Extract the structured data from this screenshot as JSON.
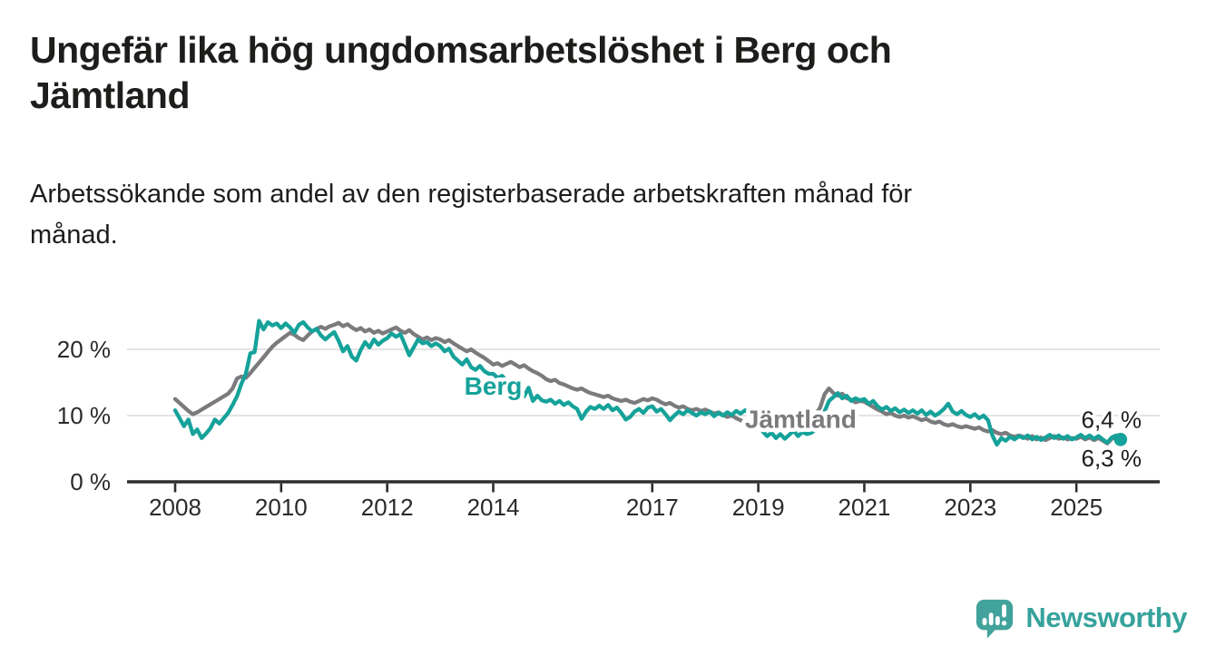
{
  "header": {
    "title_lines": [
      "Ungefär lika hög ungdomsarbetslöshet i Berg och",
      "Jämtland"
    ],
    "subtitle_lines": [
      "Arbetssökande som andel av den registerbaserade arbetskraften månad för",
      "månad."
    ]
  },
  "footer": {
    "brand": "Newsworthy"
  },
  "colors": {
    "berg": "#15a29a",
    "jamtland": "#7b7b7e",
    "axis": "#2d2d2d",
    "grid": "#dcdcdc",
    "tick_text": "#2a2a2a",
    "end_label_text": "#1d1d1b",
    "logo_bubble": "#41a39b",
    "logo_text": "#36a29c"
  },
  "chart_data": {
    "type": "line",
    "unit": "%",
    "start": {
      "year": 2008,
      "month": 1
    },
    "frequency": "monthly",
    "x_ticks": [
      2008,
      2010,
      2012,
      2014,
      2017,
      2019,
      2021,
      2023,
      2025
    ],
    "y_ticks": [
      0,
      10,
      20
    ],
    "y_tick_labels": [
      "0 %",
      "10 %",
      "20 %"
    ],
    "ylim": [
      0,
      27
    ],
    "grid": true,
    "legend_position": "inline-labels",
    "series": [
      {
        "name": "Jämtland",
        "color": "#7b7b7e",
        "label_x": 2019.8,
        "label_y": 9.55,
        "end_label": "6,3 %",
        "end_label_side": "below",
        "end_dot": false,
        "values": [
          [
            12.5,
            11.9,
            11.3,
            10.7,
            10.2,
            10.5,
            10.9,
            11.3,
            11.7,
            12.1,
            12.5,
            12.9
          ],
          [
            13.3,
            14.1,
            15.6,
            15.9,
            15.7,
            16.4,
            17.2,
            18.0,
            18.8,
            19.6,
            20.4,
            21.0
          ],
          [
            21.5,
            22.0,
            22.5,
            22.2,
            21.7,
            21.4,
            22.1,
            22.7,
            23.1,
            23.4,
            23.1,
            23.5
          ],
          [
            23.7,
            24.0,
            23.5,
            23.8,
            23.3,
            22.9,
            23.2,
            22.7,
            23.0,
            22.5,
            22.8,
            22.4
          ],
          [
            22.7,
            23.0,
            23.3,
            22.8,
            22.5,
            22.9,
            22.3,
            21.9,
            21.5,
            21.8,
            21.4,
            21.7
          ],
          [
            21.5,
            21.1,
            21.4,
            20.9,
            20.5,
            20.1,
            19.7,
            20.0,
            19.5,
            19.1,
            18.7,
            18.2
          ],
          [
            17.7,
            17.9,
            17.5,
            17.8,
            18.1,
            17.7,
            17.3,
            17.6,
            17.1,
            16.7,
            16.4,
            16.0
          ],
          [
            15.5,
            15.2,
            15.4,
            14.9,
            14.7,
            14.4,
            14.1,
            13.9,
            14.1,
            13.7,
            13.4,
            13.2
          ],
          [
            13.0,
            12.8,
            13.0,
            12.6,
            12.4,
            12.2,
            12.4,
            12.1,
            11.9,
            12.2,
            12.5,
            12.3
          ],
          [
            12.6,
            12.4,
            12.0,
            11.7,
            11.9,
            11.5,
            11.2,
            11.4,
            11.0,
            10.8,
            11.0,
            10.7
          ],
          [
            10.9,
            10.6,
            10.3,
            10.5,
            10.1,
            9.8,
            10.0,
            9.6,
            9.3,
            8.9,
            9.2,
            9.5
          ],
          [
            9.7,
            9.5,
            9.8,
            9.4,
            9.6,
            9.3,
            9.5,
            9.2,
            9.4,
            9.1,
            9.3,
            9.5
          ],
          [
            9.8,
            10.2,
            11.2,
            13.2,
            14.1,
            13.4,
            13.0,
            13.3,
            12.6,
            12.4,
            12.0,
            12.2
          ],
          [
            12.1,
            11.7,
            11.3,
            10.9,
            10.6,
            10.2,
            10.4,
            10.0,
            9.8,
            10.0,
            9.7,
            9.9
          ],
          [
            9.6,
            9.3,
            9.5,
            9.1,
            8.9,
            9.1,
            8.7,
            8.5,
            8.7,
            8.4,
            8.2,
            8.4
          ],
          [
            8.2,
            8.0,
            8.2,
            7.8,
            7.6,
            7.8,
            7.4,
            7.2,
            7.4,
            7.0,
            6.8,
            7.0
          ],
          [
            6.8,
            6.5,
            6.9,
            6.4,
            6.7,
            6.3,
            6.6,
            6.9,
            6.5,
            6.7,
            6.4,
            6.6
          ],
          [
            6.5,
            6.8,
            6.4,
            6.7,
            6.3,
            6.6,
            6.2,
            5.8,
            6.5,
            6.7,
            6.3
          ]
        ]
      },
      {
        "name": "Berg",
        "color": "#15a29a",
        "label_x": 2014.0,
        "label_y": 14.5,
        "end_label": "6,4 %",
        "end_label_side": "above",
        "end_dot": true,
        "values": [
          [
            10.8,
            9.6,
            8.4,
            9.4,
            7.2,
            7.9,
            6.6,
            7.3,
            8.1,
            9.4,
            8.8,
            9.6
          ],
          [
            10.4,
            11.6,
            12.9,
            14.8,
            16.3,
            19.4,
            19.6,
            24.3,
            23.0,
            24.1,
            23.6,
            23.9
          ],
          [
            23.2,
            23.9,
            23.3,
            22.5,
            23.7,
            24.1,
            23.3,
            22.7,
            23.1,
            22.1,
            21.5,
            22.1
          ],
          [
            22.6,
            21.3,
            19.7,
            20.5,
            18.9,
            18.3,
            19.9,
            21.1,
            20.3,
            21.5,
            20.7,
            21.3
          ],
          [
            21.7,
            22.4,
            21.9,
            22.3,
            20.7,
            19.1,
            20.3,
            21.5,
            20.9,
            21.1,
            20.5,
            20.9
          ],
          [
            20.5,
            19.7,
            20.1,
            18.9,
            18.3,
            17.7,
            18.5,
            17.3,
            16.9,
            17.5,
            16.7,
            16.3
          ],
          [
            16.3,
            15.7,
            16.0,
            15.3,
            14.7,
            15.2,
            15.2,
            12.9,
            14.2,
            12.2,
            13.0,
            12.3
          ],
          [
            12.1,
            12.4,
            11.8,
            12.2,
            11.6,
            12.0,
            11.4,
            11.0,
            9.5,
            10.6,
            11.3,
            11.0
          ],
          [
            11.5,
            11.0,
            11.6,
            10.8,
            11.2,
            10.4,
            9.4,
            9.8,
            10.6,
            11.0,
            10.4,
            11.2
          ],
          [
            11.4,
            10.6,
            11.0,
            10.2,
            9.3,
            10.0,
            10.6,
            10.2,
            10.8,
            10.4,
            10.0,
            10.5
          ],
          [
            10.2,
            10.6,
            9.9,
            10.4,
            10.0,
            10.5,
            10.1,
            10.7,
            10.3,
            10.8,
            10.4,
            10.0
          ],
          [
            9.6,
            7.6,
            6.9,
            7.4,
            6.6,
            7.2,
            6.5,
            7.1,
            7.7,
            6.9,
            7.5,
            7.2
          ],
          [
            7.4,
            7.9,
            8.8,
            10.6,
            12.2,
            12.8,
            13.4,
            12.6,
            13.0,
            12.2,
            12.6,
            12.3
          ],
          [
            12.5,
            11.8,
            12.2,
            11.4,
            10.9,
            11.3,
            10.7,
            11.1,
            10.5,
            10.9,
            10.4,
            10.8
          ],
          [
            10.3,
            10.8,
            10.1,
            10.6,
            10.0,
            10.4,
            11.0,
            11.8,
            10.6,
            10.2,
            10.7,
            10.1
          ],
          [
            9.8,
            10.2,
            9.6,
            10.0,
            9.3,
            7.0,
            5.6,
            6.6,
            6.2,
            6.8,
            6.4,
            6.9
          ],
          [
            6.6,
            7.0,
            6.4,
            6.8,
            6.3,
            6.7,
            7.1,
            6.6,
            7.0,
            6.5,
            6.9,
            6.4
          ],
          [
            6.7,
            7.1,
            6.6,
            7.0,
            6.5,
            6.9,
            6.4,
            5.9,
            6.7,
            7.0,
            6.4
          ]
        ]
      }
    ]
  }
}
